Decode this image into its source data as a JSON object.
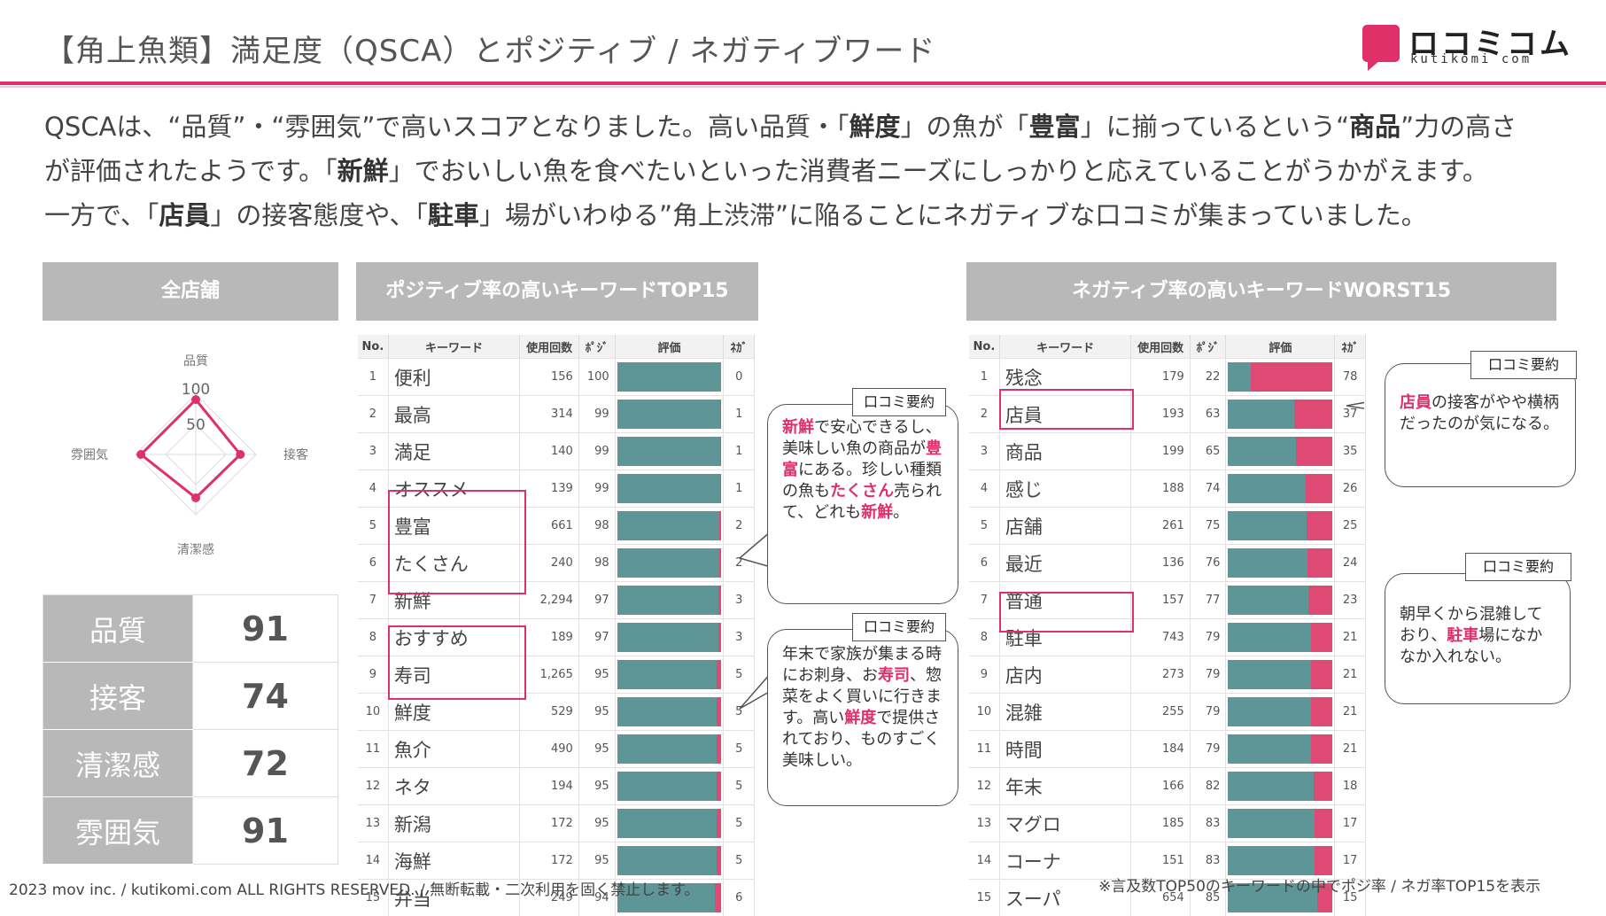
{
  "title": "【角上魚類】満足度（QSCA）とポジティブ / ネガティブワード",
  "logo": {
    "text": "ロコミコム",
    "sub": "kutikomi com"
  },
  "intro": {
    "l1a": "QSCAは、“品質”・“雰囲気”で高いスコアとなりました。高い品質・「",
    "l1b": "鮮度",
    "l1c": "」の魚が「",
    "l1d": "豊富",
    "l1e": "」に揃っているという“",
    "l1f": "商品",
    "l1g": "”力の高さ",
    "l2a": "が評価されたようです。「",
    "l2b": "新鮮",
    "l2c": "」でおいしい魚を食べたいといった消費者ニーズにしっかりと応えていることがうかがえます。",
    "l3a": "一方で、「",
    "l3b": "店員",
    "l3c": "」の接客態度や、「",
    "l3d": "駐車",
    "l3e": "」場がいわゆる”角上渋滞”に陥ることにネガティブな口コミが集まっていました。"
  },
  "sections": {
    "all": "全店舗",
    "positive": "ポジティブ率の高いキーワードTOP15",
    "negative": "ネガティブ率の高いキーワードWORST15"
  },
  "radar": {
    "axes": [
      "品質",
      "接客",
      "清潔感",
      "雰囲気"
    ],
    "values": [
      91,
      74,
      72,
      91
    ],
    "ticks": [
      "100",
      "50"
    ],
    "max": 100,
    "color": "#e0306a"
  },
  "scores": [
    {
      "label": "品質",
      "value": "91"
    },
    {
      "label": "接客",
      "value": "74"
    },
    {
      "label": "清潔感",
      "value": "72"
    },
    {
      "label": "雰囲気",
      "value": "91"
    }
  ],
  "table_headers": {
    "no": "No.",
    "keyword": "キーワード",
    "count": "使用回数",
    "posi": "ﾎﾟｼﾞ",
    "eval": "評価",
    "nega": "ﾈｶﾞ"
  },
  "positive_rows": [
    {
      "no": "1",
      "word": "便利",
      "count": "156",
      "posi": "100",
      "nega": "0"
    },
    {
      "no": "2",
      "word": "最高",
      "count": "314",
      "posi": "99",
      "nega": "1"
    },
    {
      "no": "3",
      "word": "満足",
      "count": "140",
      "posi": "99",
      "nega": "1"
    },
    {
      "no": "4",
      "word": "オススメ",
      "count": "139",
      "posi": "99",
      "nega": "1"
    },
    {
      "no": "5",
      "word": "豊富",
      "count": "661",
      "posi": "98",
      "nega": "2"
    },
    {
      "no": "6",
      "word": "たくさん",
      "count": "240",
      "posi": "98",
      "nega": "2"
    },
    {
      "no": "7",
      "word": "新鮮",
      "count": "2,294",
      "posi": "97",
      "nega": "3"
    },
    {
      "no": "8",
      "word": "おすすめ",
      "count": "189",
      "posi": "97",
      "nega": "3"
    },
    {
      "no": "9",
      "word": "寿司",
      "count": "1,265",
      "posi": "95",
      "nega": "5"
    },
    {
      "no": "10",
      "word": "鮮度",
      "count": "529",
      "posi": "95",
      "nega": "5"
    },
    {
      "no": "11",
      "word": "魚介",
      "count": "490",
      "posi": "95",
      "nega": "5"
    },
    {
      "no": "12",
      "word": "ネタ",
      "count": "194",
      "posi": "95",
      "nega": "5"
    },
    {
      "no": "13",
      "word": "新潟",
      "count": "172",
      "posi": "95",
      "nega": "5"
    },
    {
      "no": "14",
      "word": "海鮮",
      "count": "172",
      "posi": "95",
      "nega": "5"
    },
    {
      "no": "15",
      "word": "弁当",
      "count": "249",
      "posi": "94",
      "nega": "6"
    }
  ],
  "negative_rows": [
    {
      "no": "1",
      "word": "残念",
      "count": "179",
      "posi": "22",
      "nega": "78"
    },
    {
      "no": "2",
      "word": "店員",
      "count": "193",
      "posi": "63",
      "nega": "37"
    },
    {
      "no": "3",
      "word": "商品",
      "count": "199",
      "posi": "65",
      "nega": "35"
    },
    {
      "no": "4",
      "word": "感じ",
      "count": "188",
      "posi": "74",
      "nega": "26"
    },
    {
      "no": "5",
      "word": "店舗",
      "count": "261",
      "posi": "75",
      "nega": "25"
    },
    {
      "no": "6",
      "word": "最近",
      "count": "136",
      "posi": "76",
      "nega": "24"
    },
    {
      "no": "7",
      "word": "普通",
      "count": "157",
      "posi": "77",
      "nega": "23"
    },
    {
      "no": "8",
      "word": "駐車",
      "count": "743",
      "posi": "79",
      "nega": "21"
    },
    {
      "no": "9",
      "word": "店内",
      "count": "273",
      "posi": "79",
      "nega": "21"
    },
    {
      "no": "10",
      "word": "混雑",
      "count": "255",
      "posi": "79",
      "nega": "21"
    },
    {
      "no": "11",
      "word": "時間",
      "count": "184",
      "posi": "79",
      "nega": "21"
    },
    {
      "no": "12",
      "word": "年末",
      "count": "166",
      "posi": "82",
      "nega": "18"
    },
    {
      "no": "13",
      "word": "マグロ",
      "count": "185",
      "posi": "83",
      "nega": "17"
    },
    {
      "no": "14",
      "word": "コーナ",
      "count": "151",
      "posi": "83",
      "nega": "17"
    },
    {
      "no": "15",
      "word": "スーパ",
      "count": "654",
      "posi": "85",
      "nega": "15"
    }
  ],
  "colors": {
    "positive_bar": "#5e9597",
    "negative_bar": "#df4a75",
    "accent": "#e0306a"
  },
  "callouts": {
    "tag": "口コミ要約",
    "pos1": {
      "a": "新鮮",
      "b": "で安心できるし、美味しい魚の商品が",
      "c": "豊富",
      "d": "にある。珍しい種類の魚も",
      "e": "たくさん",
      "f": "売られて、どれも",
      "g": "新鮮",
      "h": "。"
    },
    "pos2": {
      "a": "年末で家族が集まる時にお刺身、お",
      "b": "寿司",
      "c": "、惣菜をよく買いに行きます。高い",
      "d": "鮮度",
      "e": "で提供されており、ものすごく美味しい。"
    },
    "neg1": {
      "a": "店員",
      "b": "の接客がやや横柄だったのが気になる。"
    },
    "neg2": {
      "a": "朝早くから混雑しており、",
      "b": "駐車",
      "c": "場になかなか入れない。"
    }
  },
  "footer": {
    "left": "2023 mov inc. / kutikomi.com ALL RIGHTS RESERVED. / 無断転載・二次利用を固く禁止します。",
    "right": "※言及数TOP50のキーワードの中でポジ率 / ネガ率TOP15を表示"
  }
}
